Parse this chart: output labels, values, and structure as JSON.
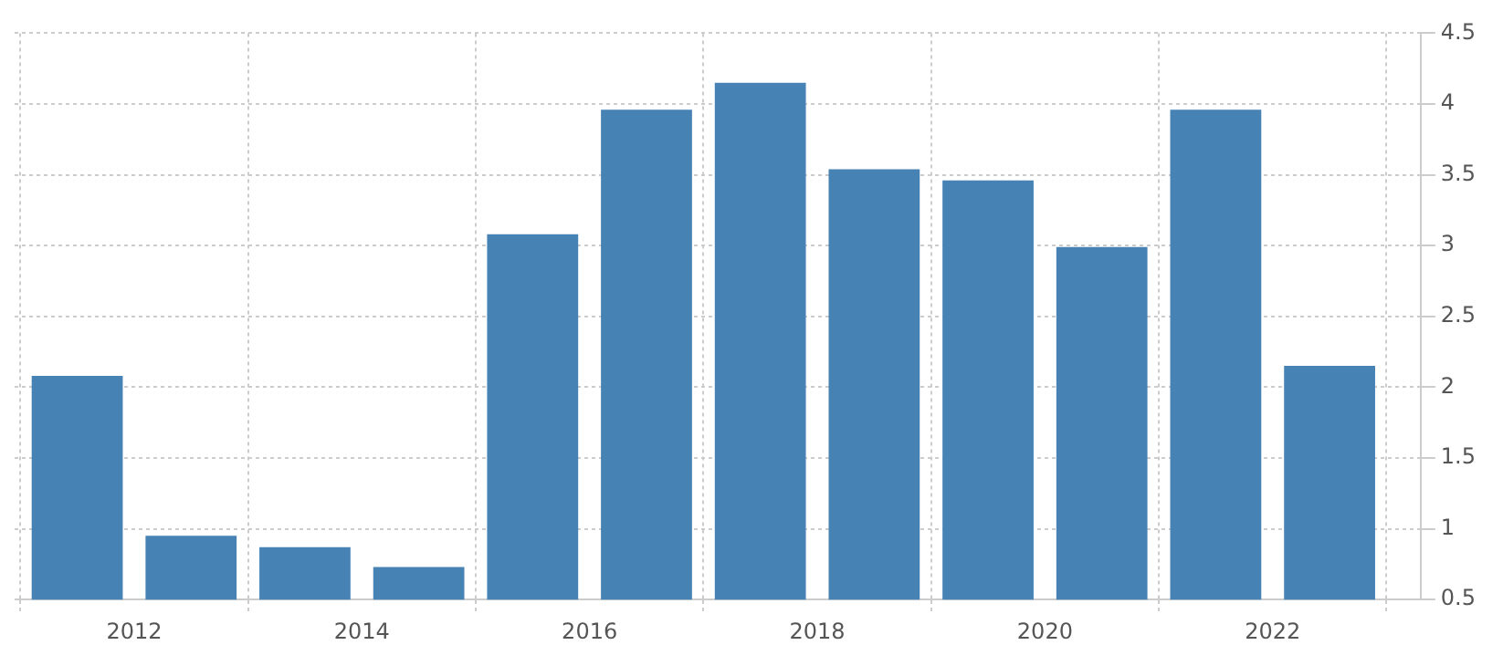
{
  "chart_data": {
    "type": "bar",
    "x": [
      2011.5,
      2012.5,
      2013.5,
      2014.5,
      2015.5,
      2016.5,
      2017.5,
      2018.5,
      2019.5,
      2020.5,
      2021.5,
      2022.5
    ],
    "values": [
      2.08,
      0.95,
      0.87,
      0.73,
      3.08,
      3.96,
      4.15,
      3.54,
      3.46,
      2.99,
      3.96,
      2.15
    ],
    "color": "#4682b4",
    "xlim": [
      2010.95,
      2023.3
    ],
    "xticks": [
      2012,
      2014,
      2016,
      2018,
      2020,
      2022
    ],
    "ylim": [
      0.5,
      4.5
    ],
    "yticks": [
      0.5,
      1,
      1.5,
      2,
      2.5,
      3,
      3.5,
      4,
      4.5
    ],
    "grid": true
  }
}
